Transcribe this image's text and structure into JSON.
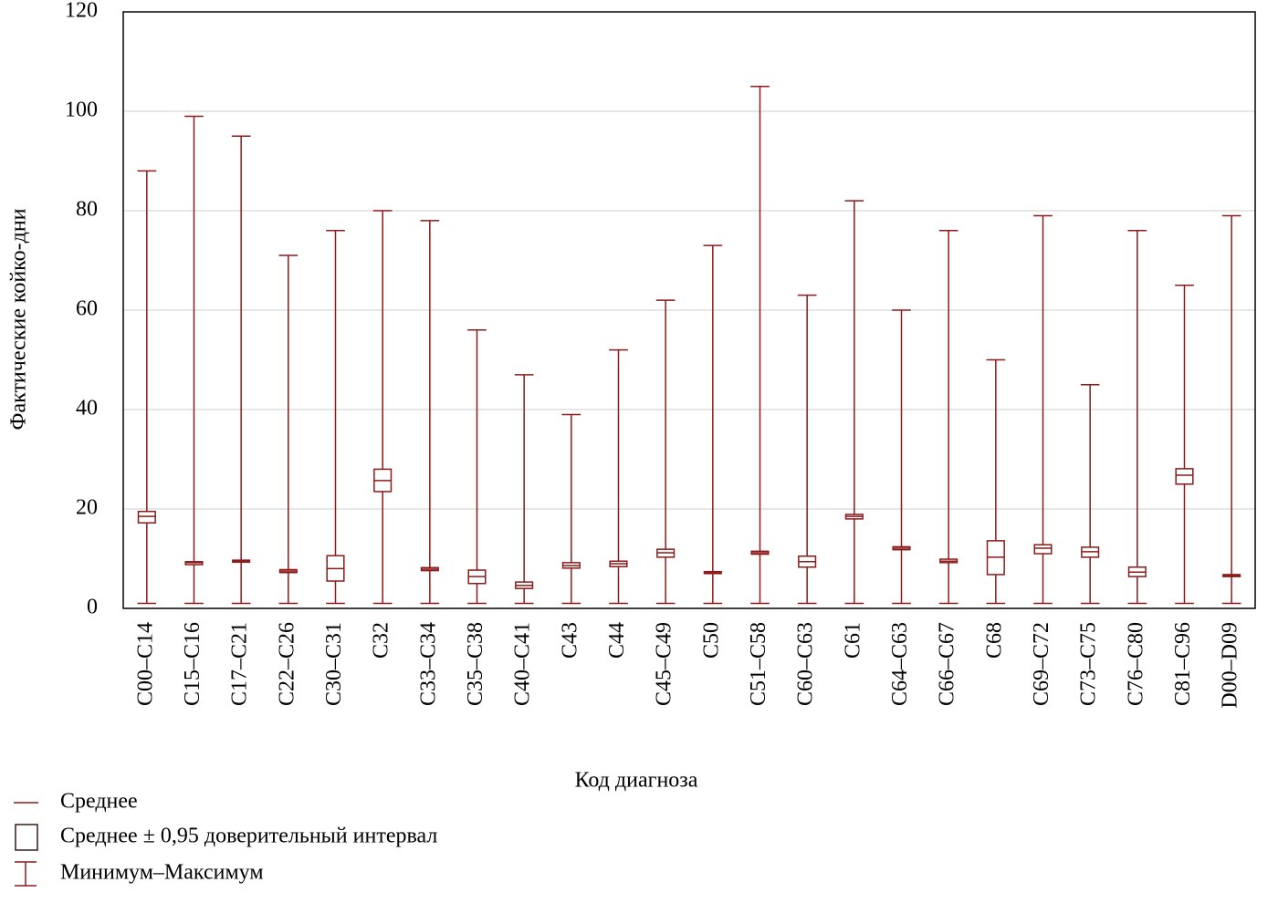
{
  "chart_data": {
    "type": "box",
    "y_label": "Фактические койко-дни",
    "x_label": "Код диагноза",
    "categories": [
      "C00–C14",
      "C15–C16",
      "C17–C21",
      "C22–C26",
      "C30–C31",
      "C32",
      "C33–C34",
      "C35–C38",
      "C40–C41",
      "C43",
      "C44",
      "C45–C49",
      "C50",
      "C51–C58",
      "C60–C63",
      "C61",
      "C64–C63",
      "C66–C67",
      "C68",
      "C69–C72",
      "C73–C75",
      "C76–C80",
      "C81–C96",
      "D00–D09"
    ],
    "mean": [
      18.5,
      9.2,
      9.5,
      7.5,
      8.0,
      25.7,
      7.9,
      6.4,
      4.6,
      8.6,
      9.0,
      11.2,
      7.2,
      11.2,
      9.4,
      18.5,
      12.1,
      9.5,
      10.3,
      12.1,
      11.4,
      7.3,
      26.8,
      6.6
    ],
    "ci_low": [
      17.2,
      8.8,
      9.3,
      7.2,
      5.5,
      23.5,
      7.6,
      5.0,
      4.0,
      8.1,
      8.4,
      10.3,
      7.0,
      10.9,
      8.3,
      18.0,
      11.8,
      9.2,
      6.8,
      11.0,
      10.3,
      6.4,
      25.0,
      6.4
    ],
    "ci_high": [
      19.5,
      9.4,
      9.7,
      7.8,
      10.6,
      28.0,
      8.2,
      7.7,
      5.3,
      9.2,
      9.5,
      11.9,
      7.4,
      11.5,
      10.5,
      18.9,
      12.4,
      9.9,
      13.6,
      12.8,
      12.3,
      8.3,
      28.1,
      6.8
    ],
    "min": [
      1,
      1,
      1,
      1,
      1,
      1,
      1,
      1,
      1,
      1,
      1,
      1,
      1,
      1,
      1,
      1,
      1,
      1,
      1,
      1,
      1,
      1,
      1,
      1
    ],
    "max": [
      88,
      99,
      95,
      71,
      76,
      80,
      78,
      56,
      47,
      39,
      52,
      62,
      73,
      105,
      63,
      82,
      60,
      76,
      50,
      79,
      45,
      76,
      65,
      79
    ],
    "color": "#8b1a1a",
    "ylim": [
      0,
      120
    ],
    "yticks": [
      0,
      20,
      40,
      60,
      80,
      100,
      120
    ],
    "grid": true,
    "legend": [
      "Среднее",
      "Среднее ± 0,95 доверительный интервал",
      "Минимум–Максимум"
    ]
  }
}
